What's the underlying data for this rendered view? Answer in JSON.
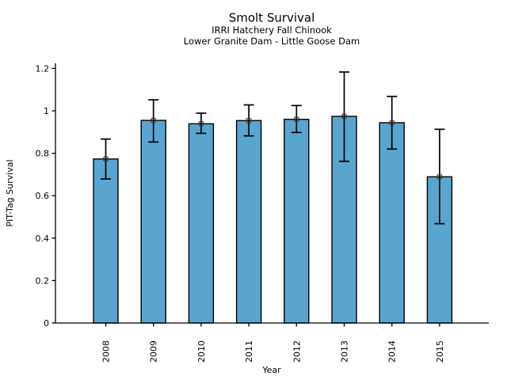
{
  "chart_data": {
    "type": "bar",
    "title": "Smolt Survival",
    "subtitle1": "IRRI Hatchery Fall Chinook",
    "subtitle2": "Lower Granite Dam - Little Goose Dam",
    "xlabel": "Year",
    "ylabel": "PIT-Tag Survival",
    "categories": [
      "2008",
      "2009",
      "2010",
      "2011",
      "2012",
      "2013",
      "2014",
      "2015"
    ],
    "values": [
      0.773,
      0.955,
      0.939,
      0.954,
      0.96,
      0.974,
      0.944,
      0.689
    ],
    "error_low": [
      0.679,
      0.853,
      0.894,
      0.882,
      0.898,
      0.762,
      0.82,
      0.468
    ],
    "error_high": [
      0.867,
      1.052,
      0.989,
      1.028,
      1.025,
      1.183,
      1.068,
      0.913
    ],
    "ylim": [
      0,
      1.224
    ],
    "yticks": [
      0,
      0.2,
      0.4,
      0.6,
      0.8,
      1.0,
      1.2
    ],
    "ytick_labels": [
      "0",
      "0.2",
      "0.4",
      "0.6",
      "0.8",
      "1",
      "1.2"
    ],
    "grid": false,
    "legend": null,
    "bar_color": "#59A5D0",
    "bar_edge_color": "#000000",
    "error_color": "#000000",
    "marker": "open-circle",
    "marker_edge_color": "#3a3a3a"
  }
}
